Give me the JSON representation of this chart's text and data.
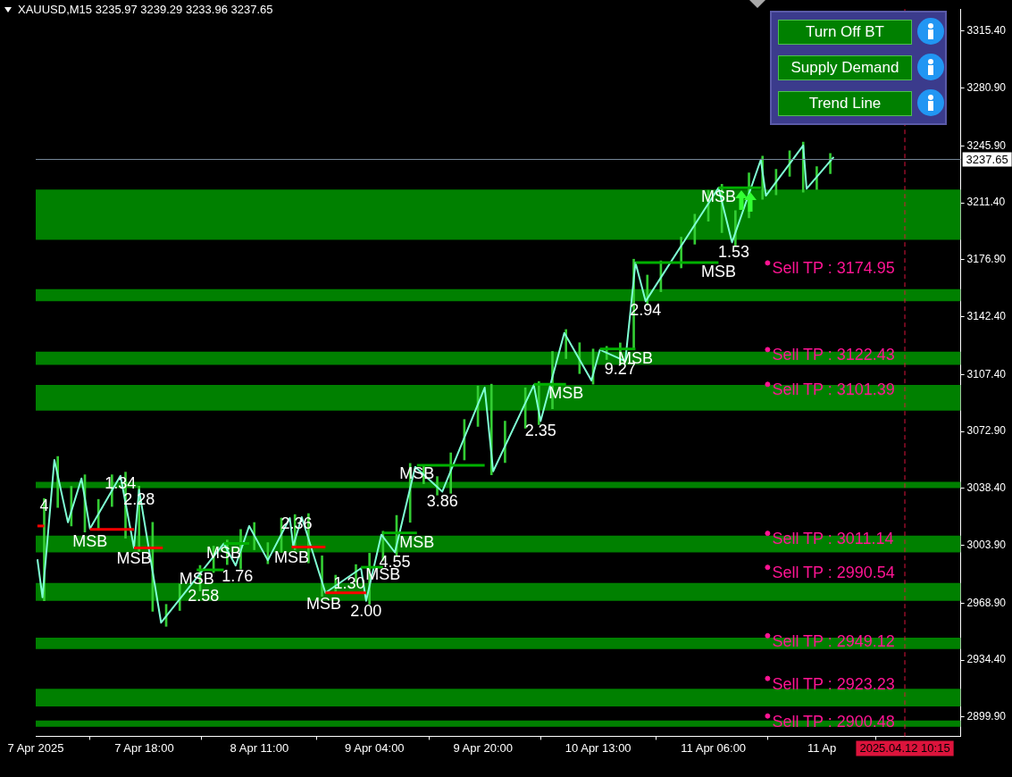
{
  "chart_data": {
    "type": "line",
    "title": "XAUUSD,M15 3235.97 3239.29 3233.96 3237.65",
    "marker": "none",
    "xlim": [
      "2025-04-07T02:00",
      "2025-04-12T18:30"
    ],
    "xticks": [
      {
        "value": "2025-04-07T02:00",
        "label": "7 Apr 2025"
      },
      {
        "value": "2025-04-07T18:00",
        "label": "7 Apr 18:00"
      },
      {
        "value": "2025-04-08T11:00",
        "label": "8 Apr 11:00"
      },
      {
        "value": "2025-04-09T04:00",
        "label": "9 Apr 04:00"
      },
      {
        "value": "2025-04-09T20:00",
        "label": "9 Apr 20:00"
      },
      {
        "value": "2025-04-10T13:00",
        "label": "10 Apr 13:00"
      },
      {
        "value": "2025-04-11T06:00",
        "label": "11 Apr 06:00"
      },
      {
        "value": "2025-04-11T22:00",
        "label": "11 Ap"
      }
    ],
    "ylim": [
      2888.2,
      3328.7
    ],
    "yticks": [
      {
        "value": 3315.4,
        "label": "3315.40"
      },
      {
        "value": 3280.9,
        "label": "3280.90"
      },
      {
        "value": 3245.9,
        "label": "3245.90"
      },
      {
        "value": 3211.4,
        "label": "3211.40"
      },
      {
        "value": 3176.9,
        "label": "3176.90"
      },
      {
        "value": 3142.4,
        "label": "3142.40"
      },
      {
        "value": 3107.4,
        "label": "3107.40"
      },
      {
        "value": 3072.9,
        "label": "3072.90"
      },
      {
        "value": 3038.4,
        "label": "3038.40"
      },
      {
        "value": 3003.9,
        "label": "3003.90"
      },
      {
        "value": 2968.9,
        "label": "2968.90"
      },
      {
        "value": 2934.4,
        "label": "2934.40"
      },
      {
        "value": 2899.9,
        "label": "2899.90"
      }
    ],
    "bands": [
      {
        "axis": "y",
        "from": 3189.0,
        "to": 3219.4,
        "color": "#008000"
      },
      {
        "axis": "y",
        "from": 3151.7,
        "to": 3159.1,
        "color": "#008000"
      },
      {
        "axis": "y",
        "from": 3113.2,
        "to": 3121.2,
        "color": "#008000"
      },
      {
        "axis": "y",
        "from": 3085.5,
        "to": 3101.0,
        "color": "#008000"
      },
      {
        "axis": "y",
        "from": 3038.6,
        "to": 3042.3,
        "color": "#008000"
      },
      {
        "axis": "y",
        "from": 2999.6,
        "to": 3009.8,
        "color": "#008000"
      },
      {
        "axis": "y",
        "from": 2970.3,
        "to": 2981.0,
        "color": "#008000"
      },
      {
        "axis": "y",
        "from": 2941.0,
        "to": 2947.9,
        "color": "#008000"
      },
      {
        "axis": "y",
        "from": 2906.3,
        "to": 2917.0,
        "color": "#008000"
      },
      {
        "axis": "y",
        "from": 2894.0,
        "to": 2897.8,
        "color": "#008000"
      }
    ],
    "series": [
      {
        "type": "bar",
        "color": "#33cc33",
        "x": [
          "2025-04-07T03:15",
          "2025-04-07T05:15",
          "2025-04-07T07:15",
          "2025-04-07T09:15",
          "2025-04-07T11:15",
          "2025-04-07T13:15",
          "2025-04-07T15:15",
          "2025-04-07T17:15",
          "2025-04-07T19:15",
          "2025-04-07T21:15",
          "2025-04-07T23:15",
          "2025-04-08T02:15",
          "2025-04-08T04:15",
          "2025-04-08T06:15",
          "2025-04-08T08:15",
          "2025-04-08T10:15",
          "2025-04-08T12:15",
          "2025-04-08T14:15",
          "2025-04-08T16:15",
          "2025-04-08T18:15",
          "2025-04-08T20:15",
          "2025-04-08T22:15",
          "2025-04-09T01:15",
          "2025-04-09T03:15",
          "2025-04-09T05:15",
          "2025-04-09T07:15",
          "2025-04-09T09:15",
          "2025-04-09T11:15",
          "2025-04-09T13:15",
          "2025-04-09T15:15",
          "2025-04-09T17:15",
          "2025-04-09T19:15",
          "2025-04-09T21:15",
          "2025-04-09T23:15",
          "2025-04-10T02:15",
          "2025-04-10T04:15",
          "2025-04-10T06:15",
          "2025-04-10T08:15",
          "2025-04-10T10:15",
          "2025-04-10T12:15",
          "2025-04-10T14:15",
          "2025-04-10T16:15",
          "2025-04-10T18:15",
          "2025-04-10T20:15",
          "2025-04-10T22:15",
          "2025-04-11T01:15",
          "2025-04-11T03:15",
          "2025-04-11T05:15",
          "2025-04-11T07:15",
          "2025-04-11T09:15",
          "2025-04-11T11:15",
          "2025-04-11T13:15",
          "2025-04-11T15:15",
          "2025-04-11T17:15",
          "2025-04-11T19:15",
          "2025-04-11T21:15",
          "2025-04-11T23:15"
        ],
        "base": [
          2970.3,
          3026.8,
          3015.6,
          3011.9,
          3013.0,
          3027.4,
          3008.2,
          3000.2,
          2963.9,
          2954.8,
          2964.4,
          2976.2,
          2987.4,
          2992.2,
          2989.5,
          3001.2,
          2992.7,
          2999.6,
          3001.2,
          2993.2,
          2973.0,
          2974.6,
          2981.5,
          2968.2,
          2994.8,
          2997.5,
          3017.8,
          3041.2,
          3034.3,
          3035.4,
          3055.6,
          3075.9,
          3046.6,
          3054.0,
          3074.8,
          3077.0,
          3086.6,
          3117.0,
          3107.9,
          3101.5,
          3116.4,
          3113.2,
          3122.3,
          3149.5,
          3157.5,
          3171.9,
          3186.3,
          3200.2,
          3193.3,
          3185.3,
          3202.3,
          3213.5,
          3216.2,
          3227.4,
          3217.8,
          3219.4,
          3229.0
        ],
        "values": [
          61.9,
          30.9,
          24.0,
          34.7,
          18.7,
          19.2,
          40.0,
          39.5,
          53.9,
          13.3,
          16.0,
          15.5,
          16.0,
          14.9,
          24.0,
          16.5,
          12.8,
          20.8,
          21.3,
          29.9,
          24.5,
          11.2,
          10.7,
          30.9,
          17.6,
          24.5,
          35.7,
          11.2,
          11.2,
          24.5,
          24.5,
          24.5,
          54.9,
          25.1,
          24.5,
          26.1,
          34.7,
          17.6,
          18.7,
          21.3,
          8.0,
          13.3,
          54.9,
          18.1,
          18.7,
          18.7,
          18.1,
          18.7,
          29.3,
          21.3,
          27.2,
          26.1,
          15.5,
          15.5,
          30.4,
          13.9,
          12.3
        ]
      },
      {
        "color": "#7fffd4",
        "x": [
          "2025-04-07T02:15",
          "2025-04-07T03:00",
          "2025-04-07T04:45",
          "2025-04-07T06:45",
          "2025-04-07T08:45",
          "2025-04-07T10:00",
          "2025-04-07T14:30",
          "2025-04-07T16:30",
          "2025-04-07T17:15",
          "2025-04-07T20:30",
          "2025-04-08T05:45",
          "2025-04-08T07:30",
          "2025-04-08T09:30",
          "2025-04-08T12:15",
          "2025-04-08T15:30",
          "2025-04-08T16:00",
          "2025-04-08T17:15",
          "2025-04-08T20:45",
          "2025-04-09T02:00",
          "2025-04-09T02:45",
          "2025-04-09T05:00",
          "2025-04-09T07:00",
          "2025-04-09T10:00",
          "2025-04-09T14:00",
          "2025-04-09T20:15",
          "2025-04-09T21:30",
          "2025-04-10T03:30",
          "2025-04-10T04:30",
          "2025-04-10T08:00",
          "2025-04-10T12:00",
          "2025-04-10T13:15",
          "2025-04-10T17:00",
          "2025-04-10T18:30",
          "2025-04-10T20:00",
          "2025-04-11T06:45",
          "2025-04-11T08:45",
          "2025-04-11T13:00",
          "2025-04-11T13:45",
          "2025-04-11T19:15",
          "2025-04-11T19:45",
          "2025-04-11T23:45"
        ],
        "values": [
          2995.4,
          2972.4,
          3055.6,
          3017.8,
          3044.4,
          3014.0,
          3046.0,
          3002.3,
          3037.5,
          2957.0,
          3005.0,
          2991.6,
          3015.6,
          2994.8,
          3020.4,
          3003.4,
          3021.0,
          2975.1,
          2990.0,
          2970.3,
          3010.3,
          2999.6,
          3051.4,
          3036.4,
          3099.4,
          3048.7,
          3101.0,
          3079.1,
          3132.5,
          3103.7,
          3122.3,
          3115.4,
          3175.1,
          3151.7,
          3220.5,
          3187.4,
          3237.5,
          3215.7,
          3246.1,
          3219.9,
          3239.1
        ]
      },
      {
        "type": "line",
        "color": "#ff0000",
        "x": [
          "2025-04-07T02:15",
          "2025-04-07T03:15"
        ],
        "values": [
          3015.6,
          3015.6
        ]
      },
      {
        "type": "line",
        "color": "#ff0000",
        "x": [
          "2025-04-07T10:00",
          "2025-04-07T16:30"
        ],
        "values": [
          3013.5,
          3013.5
        ]
      },
      {
        "type": "line",
        "color": "#ff0000",
        "x": [
          "2025-04-07T16:30",
          "2025-04-07T20:45"
        ],
        "values": [
          3002.3,
          3002.3
        ]
      },
      {
        "type": "line",
        "color": "#00b000",
        "x": [
          "2025-04-08T01:45",
          "2025-04-08T05:45"
        ],
        "values": [
          2989.0,
          2989.0
        ]
      },
      {
        "type": "line",
        "color": "#00b000",
        "x": [
          "2025-04-08T05:45",
          "2025-04-08T09:30"
        ],
        "values": [
          3005.0,
          3005.0
        ]
      },
      {
        "type": "line",
        "color": "#ff0000",
        "x": [
          "2025-04-08T15:45",
          "2025-04-08T20:45"
        ],
        "values": [
          3002.8,
          3002.8
        ]
      },
      {
        "type": "line",
        "color": "#ff0000",
        "x": [
          "2025-04-08T20:45",
          "2025-04-09T02:45"
        ],
        "values": [
          2975.1,
          2975.1
        ]
      },
      {
        "type": "line",
        "color": "#00b000",
        "x": [
          "2025-04-09T02:00",
          "2025-04-09T05:15"
        ],
        "values": [
          2990.6,
          2990.6
        ]
      },
      {
        "type": "line",
        "color": "#00b000",
        "x": [
          "2025-04-09T05:15",
          "2025-04-09T10:15"
        ],
        "values": [
          3011.4,
          3011.4
        ]
      },
      {
        "type": "line",
        "color": "#00b000",
        "x": [
          "2025-04-09T10:15",
          "2025-04-09T20:15"
        ],
        "values": [
          3052.4,
          3052.4
        ]
      },
      {
        "type": "line",
        "color": "#00b000",
        "x": [
          "2025-04-10T03:30",
          "2025-04-10T08:15"
        ],
        "values": [
          3101.5,
          3101.5
        ]
      },
      {
        "type": "line",
        "color": "#00b000",
        "x": [
          "2025-04-10T13:15",
          "2025-04-10T18:30"
        ],
        "values": [
          3122.8,
          3122.8
        ]
      },
      {
        "type": "line",
        "color": "#00b000",
        "x": [
          "2025-04-10T18:30",
          "2025-04-11T06:45"
        ],
        "values": [
          3175.1,
          3175.1
        ]
      },
      {
        "type": "line",
        "color": "#00b000",
        "x": [
          "2025-04-11T06:45",
          "2025-04-11T13:00"
        ],
        "values": [
          3220.5,
          3220.5
        ]
      },
      {
        "type": "scatter",
        "color": "#ff1493",
        "marker": "circle",
        "x": [
          "2025-04-11T14:00",
          "2025-04-11T14:00",
          "2025-04-11T14:00",
          "2025-04-11T14:00",
          "2025-04-11T14:00",
          "2025-04-11T14:00",
          "2025-04-11T14:00",
          "2025-04-11T14:00"
        ],
        "values": [
          3174.95,
          3122.43,
          3101.39,
          3011.14,
          2990.54,
          2949.12,
          2923.23,
          2900.48
        ],
        "value_labels": [
          "Sell TP : 3174.95",
          "Sell TP : 3122.43",
          "Sell TP : 3101.39",
          "Sell TP : 3011.14",
          "Sell TP : 2990.54",
          "Sell TP : 2949.12",
          "Sell TP : 2923.23",
          "Sell TP : 2900.48"
        ]
      }
    ],
    "ref_lines": [
      {
        "axis": "y",
        "value": 3237.65,
        "label": "3237.65",
        "color": "#778899"
      },
      {
        "axis": "x",
        "value": "2025-04-12T10:15",
        "label": "2025.04.12 10:15",
        "color": "#dc143c",
        "line_style": "dashed"
      }
    ],
    "annotations": [
      "Turn Off BT",
      "Supply Demand",
      "Trend Line",
      {
        "text": "MSB",
        "x": "2025-04-07T10:00",
        "y": 3010.8
      },
      {
        "text": "MSB",
        "x": "2025-04-07T16:30",
        "y": 3000.2
      },
      {
        "text": "MSB",
        "x": "2025-04-08T01:45",
        "y": 2987.9
      },
      {
        "text": "MSB",
        "x": "2025-04-08T05:45",
        "y": 3003.9
      },
      {
        "text": "MSB",
        "x": "2025-04-08T15:45",
        "y": 3000.7
      },
      {
        "text": "MSB",
        "x": "2025-04-08T20:30",
        "y": 2973.0
      },
      {
        "text": "MSB",
        "x": "2025-04-09T05:15",
        "y": 2990.6
      },
      {
        "text": "MSB",
        "x": "2025-04-09T10:15",
        "y": 3010.3
      },
      {
        "text": "MSB",
        "x": "2025-04-09T10:15",
        "y": 3051.9
      },
      {
        "text": "MSB",
        "x": "2025-04-10T08:15",
        "y": 3100.4
      },
      {
        "text": "MSB",
        "x": "2025-04-10T18:30",
        "y": 3121.8
      },
      {
        "text": "MSB",
        "x": "2025-04-11T06:45",
        "y": 3174.0
      },
      {
        "text": "MSB",
        "x": "2025-04-11T06:45",
        "y": 3219.4
      },
      {
        "text": "4",
        "x": "2025-04-07T03:15",
        "y": 3032.2
      },
      {
        "text": "1.34",
        "x": "2025-04-07T14:30",
        "y": 3046.0
      },
      {
        "text": "2.28",
        "x": "2025-04-07T17:15",
        "y": 3035.9
      },
      {
        "text": "2.58",
        "x": "2025-04-08T02:45",
        "y": 2977.8
      },
      {
        "text": "1.76",
        "x": "2025-04-08T07:45",
        "y": 2989.5
      },
      {
        "text": "2.36",
        "x": "2025-04-08T16:30",
        "y": 3021.5
      },
      {
        "text": "1.30",
        "x": "2025-04-09T00:15",
        "y": 2985.0
      },
      {
        "text": "2.00",
        "x": "2025-04-09T02:45",
        "y": 2968.7
      },
      {
        "text": "4.55",
        "x": "2025-04-09T07:00",
        "y": 2998.0
      },
      {
        "text": "3.86",
        "x": "2025-04-09T14:00",
        "y": 3034.8
      },
      {
        "text": "2.35",
        "x": "2025-04-10T04:30",
        "y": 3077.5
      },
      {
        "text": "9.27",
        "x": "2025-04-10T16:15",
        "y": 3114.9
      },
      {
        "text": "2.94",
        "x": "2025-04-10T20:00",
        "y": 3150.6
      },
      {
        "text": "1.53",
        "x": "2025-04-11T09:00",
        "y": 3185.8
      }
    ]
  }
}
